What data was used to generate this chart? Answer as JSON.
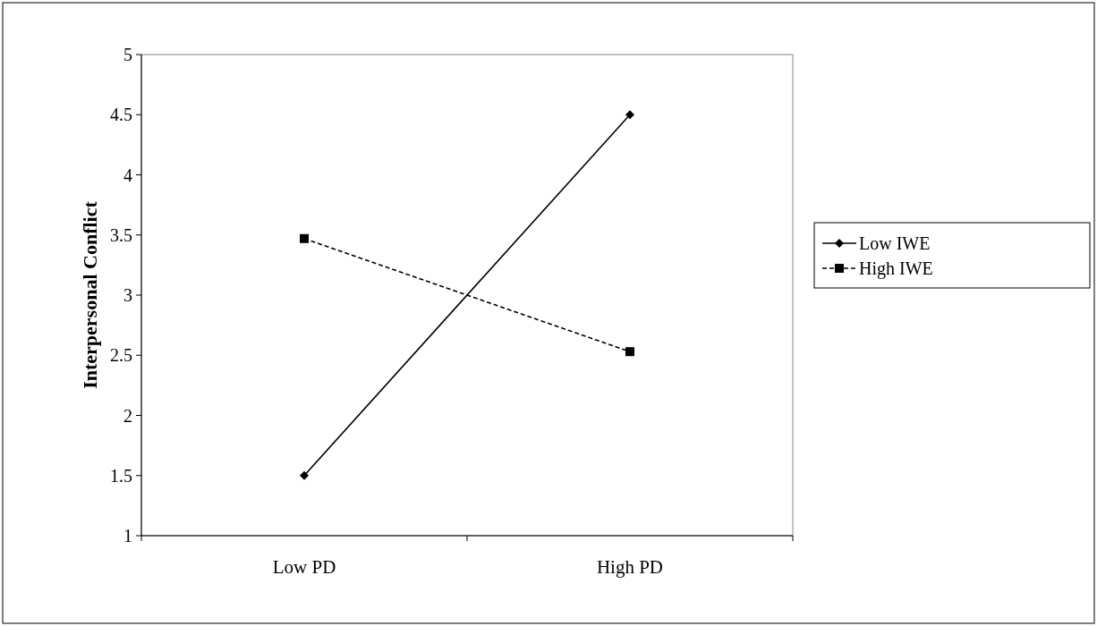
{
  "chart_data": {
    "type": "line",
    "ylabel": "Interpersonal Conflict",
    "categories": [
      "Low PD",
      "High PD"
    ],
    "series": [
      {
        "name": "Low IWE",
        "color": "#000000",
        "values": [
          1.5,
          4.5
        ],
        "marker": "diamond",
        "line_style": "solid"
      },
      {
        "name": "High IWE",
        "color": "#000000",
        "values": [
          3.47,
          2.53
        ],
        "marker": "square",
        "line_style": "dashed"
      }
    ],
    "ylim": [
      1,
      5
    ],
    "yticks": [
      1,
      1.5,
      2,
      2.5,
      3,
      3.5,
      4,
      4.5,
      5
    ],
    "legend": "right"
  }
}
